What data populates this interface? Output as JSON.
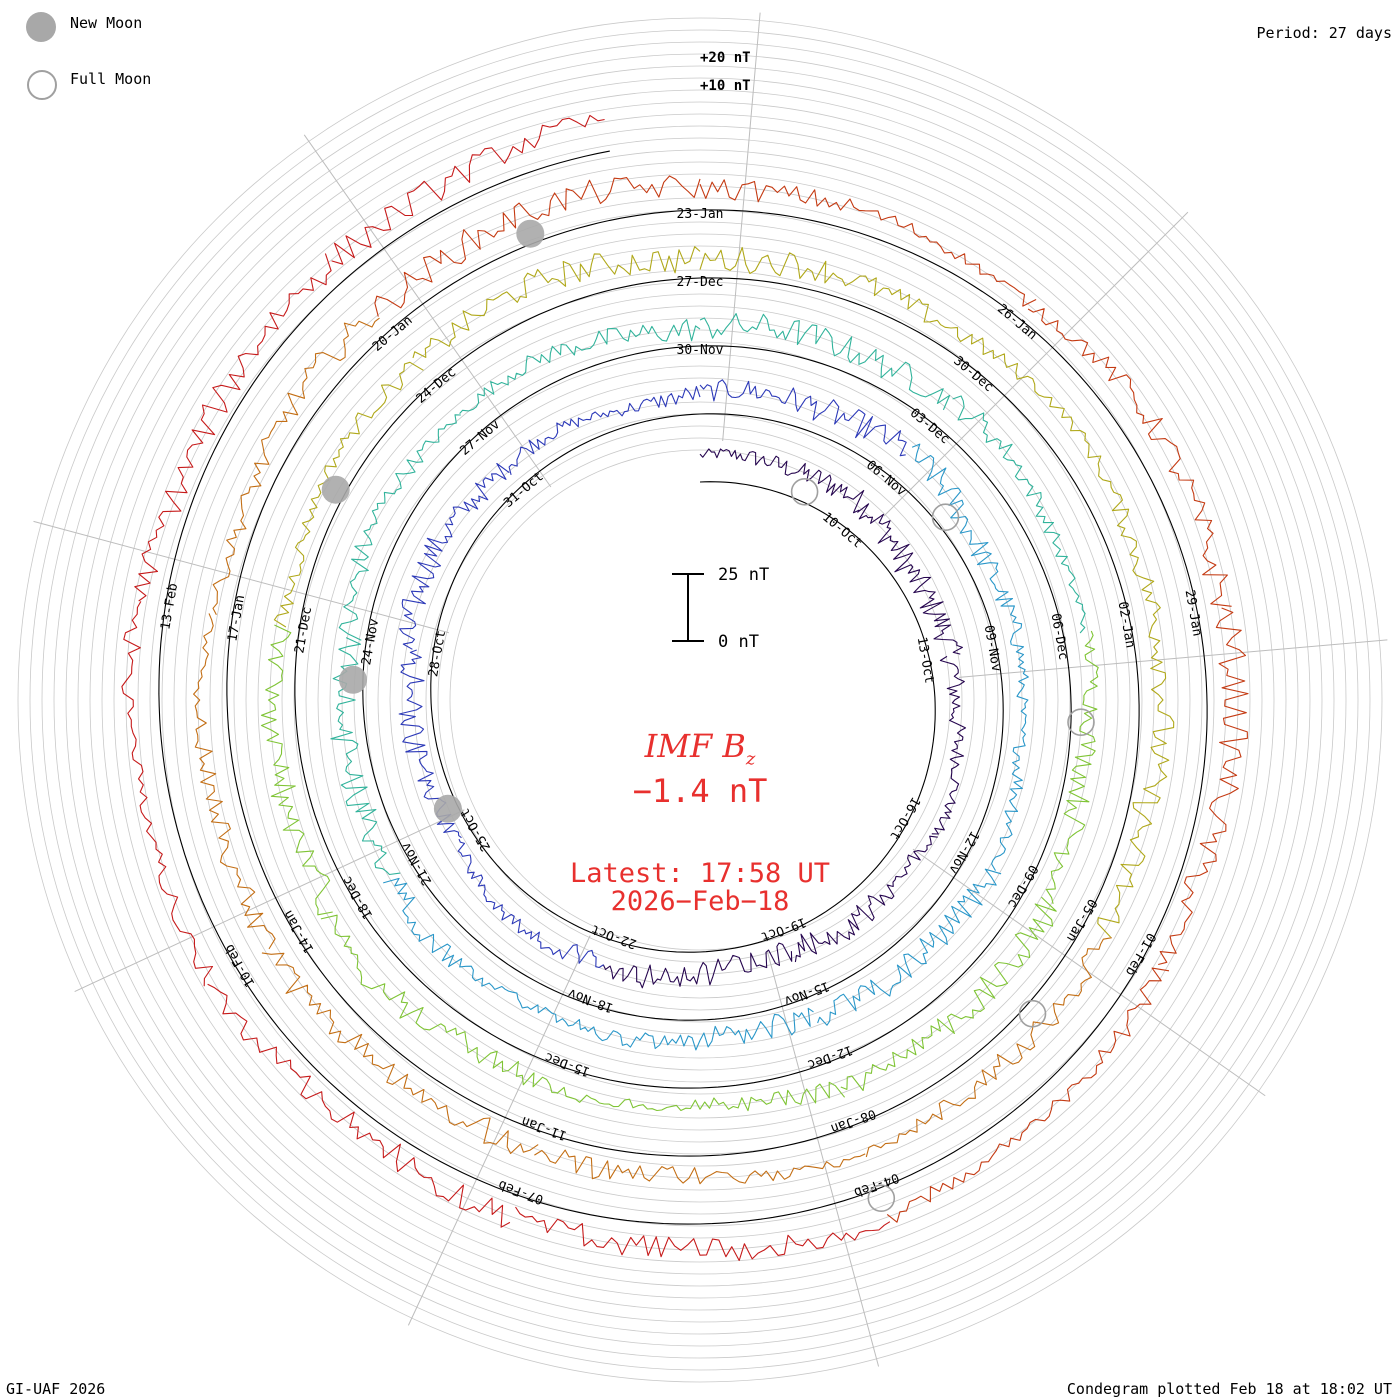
{
  "header": {
    "legend_new_moon": "New Moon",
    "legend_full_moon": "Full Moon",
    "period": "Period: 27 days"
  },
  "center": {
    "title": "IMF B",
    "title_subscript": "z",
    "value": "−1.4 nT",
    "latest_line1": "Latest: 17:58 UT",
    "latest_line2": "2026−Feb−18"
  },
  "footer": {
    "left": "GI-UAF 2026",
    "right": "Condegram plotted Feb 18 at 18:02 UT"
  },
  "chart_data": {
    "type": "line",
    "title": "IMF Bz",
    "subtitle": "-1.4 nT",
    "scale_labels": [
      "+20 nT",
      "+10 nT"
    ],
    "scale_bar_labels": [
      "25 nT",
      "0 nT"
    ],
    "period_days": 27,
    "series_colors": [
      "#26064f",
      "#2c39b8",
      "#2a97c9",
      "#31b39b",
      "#7fc435",
      "#b0a81a",
      "#c36e14",
      "#c43a12",
      "#c61a1a"
    ],
    "date_labels": [
      {
        "text": "10-Oct",
        "day": 3
      },
      {
        "text": "13-Oct",
        "day": 6
      },
      {
        "text": "16-Oct",
        "day": 9
      },
      {
        "text": "19-Oct",
        "day": 12
      },
      {
        "text": "22-Oct",
        "day": 15
      },
      {
        "text": "25-Oct",
        "day": 18
      },
      {
        "text": "28-Oct",
        "day": 21
      },
      {
        "text": "31-Oct",
        "day": 24
      },
      {
        "text": "06-Nov",
        "day": 30
      },
      {
        "text": "09-Nov",
        "day": 33
      },
      {
        "text": "12-Nov",
        "day": 36
      },
      {
        "text": "15-Nov",
        "day": 39
      },
      {
        "text": "18-Nov",
        "day": 42
      },
      {
        "text": "21-Nov",
        "day": 45
      },
      {
        "text": "24-Nov",
        "day": 48
      },
      {
        "text": "27-Nov",
        "day": 51
      },
      {
        "text": "30-Nov",
        "day": 54
      },
      {
        "text": "03-Dec",
        "day": 57
      },
      {
        "text": "06-Dec",
        "day": 60
      },
      {
        "text": "09-Dec",
        "day": 63
      },
      {
        "text": "12-Dec",
        "day": 66
      },
      {
        "text": "15-Dec",
        "day": 69
      },
      {
        "text": "18-Dec",
        "day": 72
      },
      {
        "text": "21-Dec",
        "day": 75
      },
      {
        "text": "24-Dec",
        "day": 78
      },
      {
        "text": "27-Dec",
        "day": 81
      },
      {
        "text": "30-Dec",
        "day": 84
      },
      {
        "text": "02-Jan",
        "day": 87
      },
      {
        "text": "05-Jan",
        "day": 90
      },
      {
        "text": "08-Jan",
        "day": 93
      },
      {
        "text": "11-Jan",
        "day": 96
      },
      {
        "text": "14-Jan",
        "day": 99
      },
      {
        "text": "17-Jan",
        "day": 102
      },
      {
        "text": "20-Jan",
        "day": 105
      },
      {
        "text": "23-Jan",
        "day": 108
      },
      {
        "text": "26-Jan",
        "day": 111
      },
      {
        "text": "29-Jan",
        "day": 114
      },
      {
        "text": "01-Feb",
        "day": 117
      },
      {
        "text": "04-Feb",
        "day": 120
      },
      {
        "text": "07-Feb",
        "day": 123
      },
      {
        "text": "10-Feb",
        "day": 126
      },
      {
        "text": "13-Feb",
        "day": 129
      }
    ],
    "new_moons": [
      18.5,
      47.5,
      76.5,
      106.5
    ],
    "full_moons": [
      2,
      31,
      61,
      91,
      120
    ],
    "total_days": 134.3,
    "legend": [
      "New Moon",
      "Full Moon"
    ]
  }
}
